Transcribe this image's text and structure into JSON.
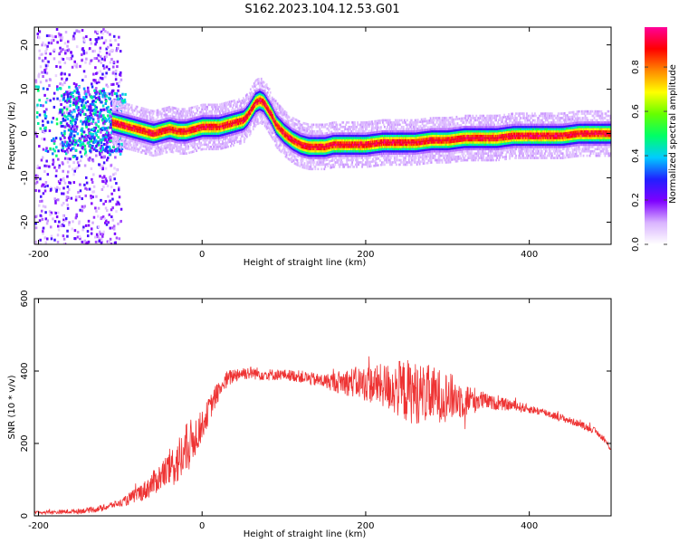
{
  "title": "S162.2023.104.12.53.G01",
  "chart_data": [
    {
      "type": "heatmap",
      "title": "S162.2023.104.12.53.G01",
      "xlabel": "Height of straight line (km)",
      "ylabel": "Frequency (Hz)",
      "xlim": [
        -205,
        500
      ],
      "ylim": [
        -25,
        24
      ],
      "x_ticks": [
        "-200",
        "0",
        "200",
        "400"
      ],
      "y_ticks": [
        "20",
        "10",
        "0",
        "-10",
        "-20"
      ],
      "colorbar": {
        "label": "Normalized spectral amplitude",
        "range": [
          0,
          0.98
        ],
        "ticks": [
          "0.0",
          "0.2",
          "0.4",
          "0.6",
          "0.8"
        ],
        "colormap": [
          "#ffffff",
          "#d9b3ff",
          "#7f00ff",
          "#2020ff",
          "#00ccff",
          "#00ff66",
          "#66ff00",
          "#ffff00",
          "#ff8800",
          "#ff0000",
          "#ff0099"
        ]
      },
      "ridge": {
        "description": "frequency of peak spectral amplitude vs height",
        "x": [
          -110,
          -100,
          -90,
          -80,
          -70,
          -60,
          -50,
          -40,
          -30,
          -20,
          -10,
          0,
          10,
          20,
          30,
          40,
          50,
          55,
          60,
          65,
          70,
          75,
          80,
          85,
          90,
          95,
          100,
          110,
          120,
          130,
          140,
          150,
          160,
          180,
          200,
          220,
          240,
          260,
          280,
          300,
          320,
          340,
          360,
          380,
          400,
          420,
          440,
          460,
          480,
          500
        ],
        "y": [
          2.5,
          2.0,
          1.5,
          1.0,
          0.5,
          0.0,
          0.5,
          1.0,
          0.5,
          0.5,
          1.0,
          1.5,
          1.5,
          1.5,
          2.0,
          2.5,
          3.0,
          4.0,
          5.5,
          7.0,
          7.5,
          7.0,
          5.5,
          4.0,
          2.0,
          1.0,
          0.0,
          -1.5,
          -2.5,
          -3.0,
          -3.0,
          -3.0,
          -2.5,
          -2.5,
          -2.5,
          -2.0,
          -2.0,
          -2.0,
          -1.5,
          -1.5,
          -1.0,
          -1.0,
          -1.0,
          -0.5,
          -0.5,
          -0.5,
          -0.5,
          0.0,
          0.0,
          0.0
        ]
      },
      "noise_region": {
        "x": [
          -205,
          -100
        ],
        "y": [
          -25,
          24
        ]
      }
    },
    {
      "type": "line",
      "xlabel": "Height of straight line (km)",
      "ylabel": "SNR (10 * v/v)",
      "xlim": [
        -205,
        500
      ],
      "ylim": [
        0,
        600
      ],
      "x_ticks": [
        "-200",
        "0",
        "200",
        "400"
      ],
      "y_ticks": [
        "600",
        "400",
        "200",
        "0"
      ],
      "color": "#ee3333",
      "series": [
        {
          "x": [
            -205,
            -180,
            -160,
            -140,
            -120,
            -110,
            -100,
            -90,
            -80,
            -70,
            -60,
            -50,
            -40,
            -30,
            -20,
            -10,
            0,
            10,
            20,
            30,
            40,
            50,
            60,
            80,
            100,
            120,
            140,
            160,
            180,
            200,
            220,
            240,
            260,
            280,
            300,
            320,
            340,
            360,
            380,
            400,
            420,
            440,
            460,
            480,
            490,
            500
          ],
          "y": [
            10,
            10,
            12,
            15,
            22,
            30,
            35,
            45,
            60,
            70,
            90,
            110,
            130,
            150,
            175,
            215,
            250,
            300,
            345,
            375,
            390,
            395,
            395,
            390,
            390,
            385,
            375,
            370,
            370,
            365,
            360,
            350,
            340,
            335,
            330,
            320,
            320,
            310,
            305,
            295,
            285,
            270,
            255,
            235,
            215,
            185
          ]
        }
      ],
      "noise_amplitude": {
        "x": [
          -205,
          -100,
          -50,
          -20,
          0,
          40,
          100,
          150,
          180,
          220,
          250,
          280,
          300,
          330,
          350,
          400,
          500
        ],
        "amp": [
          4,
          10,
          40,
          80,
          40,
          20,
          15,
          20,
          40,
          60,
          90,
          80,
          70,
          40,
          20,
          12,
          8
        ]
      }
    }
  ]
}
